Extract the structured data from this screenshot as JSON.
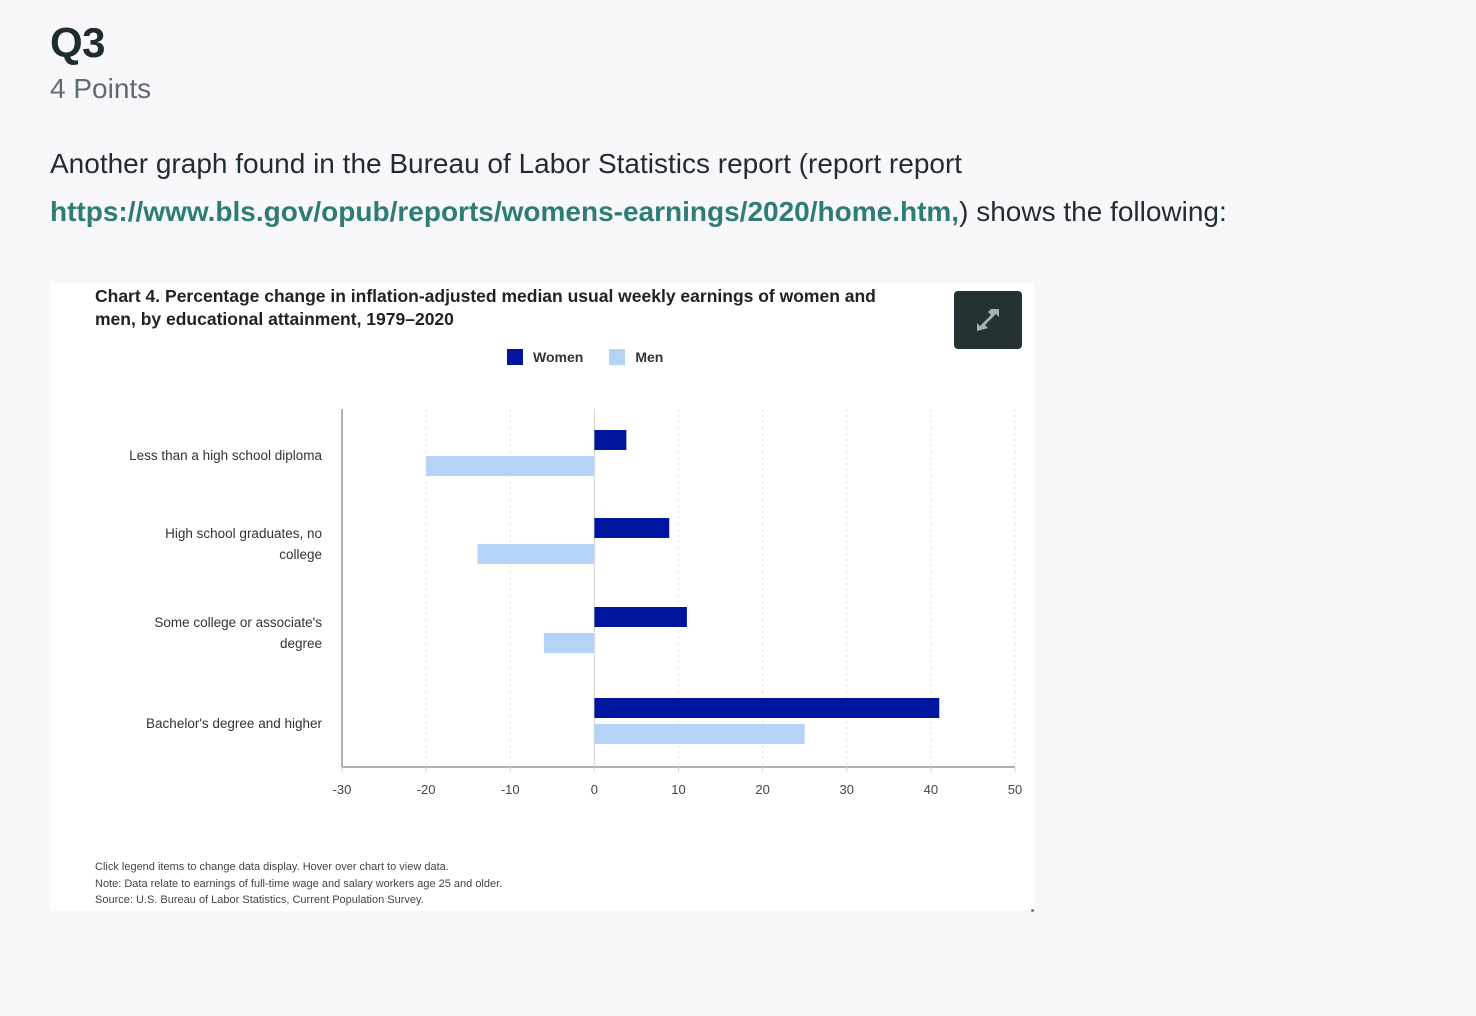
{
  "question": {
    "title": "Q3",
    "points": "4 Points",
    "body_prefix": "Another graph found in the Bureau of Labor Statistics report (report report ",
    "link_text": "https://www.bls.gov/opub/reports/womens-earnings/2020/home.htm,",
    "body_suffix": ") shows the following:"
  },
  "colors": {
    "heading": "#1f2d2e",
    "link": "#2e7c76",
    "women": "#00169e",
    "men": "#b5d3f7",
    "expand_button_bg": "#243233"
  },
  "expand_button": {
    "icon": "expand-arrows-icon"
  },
  "chart_data": {
    "type": "bar",
    "orientation": "horizontal",
    "title": "Chart 4. Percentage change in inflation-adjusted median usual weekly earnings of women and men, by educational attainment, 1979–2020",
    "title_line1": "Chart 4. Percentage change in inflation-adjusted median usual weekly earnings of women and",
    "title_line2": "men, by educational attainment, 1979–2020",
    "categories": [
      "Less than a high school diploma",
      "High school graduates, no college",
      "Some college or associate's degree",
      "Bachelor's degree and higher"
    ],
    "category_label_lines": [
      [
        "Less than a high school diploma"
      ],
      [
        "High school graduates, no",
        "college"
      ],
      [
        "Some college or associate's",
        "degree"
      ],
      [
        "Bachelor's degree and higher"
      ]
    ],
    "series": [
      {
        "name": "Women",
        "color": "#00169e",
        "values": [
          3.8,
          8.9,
          11.0,
          41.0
        ]
      },
      {
        "name": "Men",
        "color": "#b5d3f7",
        "values": [
          -20.0,
          -13.9,
          -6.0,
          25.0
        ]
      }
    ],
    "xlabel": "",
    "ylabel": "",
    "xlim": [
      -30,
      50
    ],
    "xticks": [
      -30,
      -20,
      -10,
      0,
      10,
      20,
      30,
      40,
      50
    ],
    "grid": "vertical dotted",
    "legend_position": "top",
    "notes": [
      "Click legend items to change data display. Hover over chart to view data.",
      "Note: Data relate to earnings of full-time wage and salary workers age 25 and older.",
      "Source: U.S. Bureau of Labor Statistics, Current Population Survey."
    ]
  }
}
